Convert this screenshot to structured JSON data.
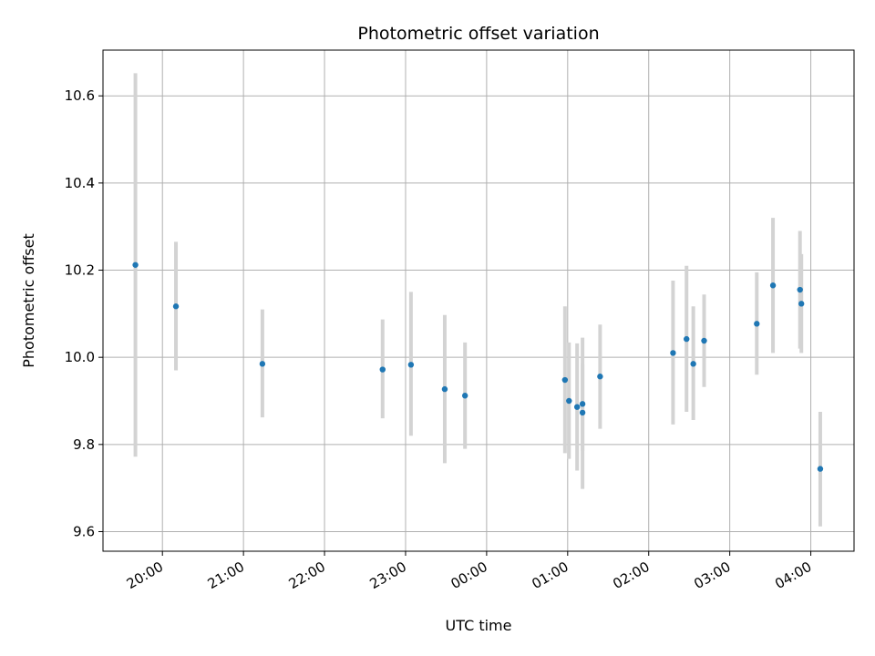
{
  "chart_data": {
    "type": "scatter",
    "title": "Photometric offset variation",
    "xlabel": "UTC time",
    "ylabel": "Photometric offset",
    "grid": true,
    "legend": "none",
    "x_ticks": [
      "20:00",
      "21:00",
      "22:00",
      "23:00",
      "00:00",
      "01:00",
      "02:00",
      "03:00",
      "04:00"
    ],
    "y_ticks": [
      "9.6",
      "9.8",
      "10.0",
      "10.2",
      "10.4",
      "10.6"
    ],
    "xlim": [
      "19:16",
      "04:32"
    ],
    "ylim": [
      9.555,
      10.705
    ],
    "point_color": "#1f77b4",
    "errorbar_color": "#d3d3d3",
    "series": [
      {
        "points": [
          {
            "t": "19:40",
            "y": 10.212,
            "lo": 9.772,
            "hi": 10.652
          },
          {
            "t": "20:10",
            "y": 10.117,
            "lo": 9.97,
            "hi": 10.265
          },
          {
            "t": "21:14",
            "y": 9.985,
            "lo": 9.862,
            "hi": 10.11
          },
          {
            "t": "22:43",
            "y": 9.972,
            "lo": 9.86,
            "hi": 10.087
          },
          {
            "t": "23:04",
            "y": 9.983,
            "lo": 9.82,
            "hi": 10.15
          },
          {
            "t": "23:29",
            "y": 9.927,
            "lo": 9.757,
            "hi": 10.097
          },
          {
            "t": "23:44",
            "y": 9.912,
            "lo": 9.79,
            "hi": 10.034
          },
          {
            "t": "00:58",
            "y": 9.948,
            "lo": 9.78,
            "hi": 10.117
          },
          {
            "t": "01:01",
            "y": 9.9,
            "lo": 9.767,
            "hi": 10.034
          },
          {
            "t": "01:07",
            "y": 9.886,
            "lo": 9.74,
            "hi": 10.032
          },
          {
            "t": "01:11",
            "y": 9.893,
            "lo": 9.785,
            "hi": 10.045
          },
          {
            "t": "01:11",
            "y": 9.873,
            "lo": 9.698,
            "hi": 9.985
          },
          {
            "t": "01:24",
            "y": 9.956,
            "lo": 9.836,
            "hi": 10.075
          },
          {
            "t": "02:18",
            "y": 10.01,
            "lo": 9.846,
            "hi": 10.176
          },
          {
            "t": "02:28",
            "y": 10.042,
            "lo": 9.875,
            "hi": 10.21
          },
          {
            "t": "02:33",
            "y": 9.985,
            "lo": 9.856,
            "hi": 10.117
          },
          {
            "t": "02:41",
            "y": 10.038,
            "lo": 9.932,
            "hi": 10.144
          },
          {
            "t": "03:20",
            "y": 10.077,
            "lo": 9.96,
            "hi": 10.195
          },
          {
            "t": "03:32",
            "y": 10.165,
            "lo": 10.01,
            "hi": 10.32
          },
          {
            "t": "03:52",
            "y": 10.155,
            "lo": 10.02,
            "hi": 10.29
          },
          {
            "t": "03:53",
            "y": 10.123,
            "lo": 10.01,
            "hi": 10.237
          },
          {
            "t": "04:07",
            "y": 9.744,
            "lo": 9.612,
            "hi": 9.875
          }
        ]
      }
    ]
  }
}
